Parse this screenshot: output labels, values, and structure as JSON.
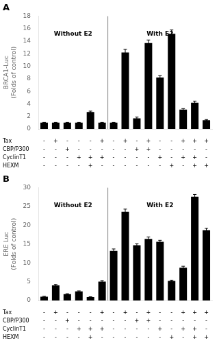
{
  "chart_data": [
    {
      "type": "bar",
      "title": "A",
      "ylabel": "BRCA1-Luc\n(Folds of control)",
      "values": [
        1.0,
        1.0,
        1.0,
        1.0,
        2.7,
        1.0,
        1.0,
        12.2,
        1.7,
        13.7,
        8.2,
        15.2,
        3.1,
        4.2,
        1.4
      ],
      "errors": [
        0.05,
        0.05,
        0.05,
        0.05,
        0.15,
        0.05,
        0.05,
        0.5,
        0.2,
        0.5,
        0.3,
        0.6,
        0.15,
        0.25,
        0.1
      ],
      "color": "#000000",
      "ylim": [
        0,
        18
      ],
      "yticks": [
        0,
        2,
        4,
        6,
        8,
        10,
        12,
        14,
        16,
        18
      ],
      "grid": false,
      "tick_labels": "y",
      "annotations": [
        "Without E2",
        "With E2"
      ],
      "divider": 6,
      "table": {
        "rows": [
          "Tax",
          "CBP/P300",
          "CyclinT1",
          "HEXM"
        ],
        "cells": [
          [
            "-",
            "+",
            "-",
            "-",
            "-",
            "+",
            "-",
            "+",
            "-",
            "+",
            "-",
            "-",
            "+",
            "+",
            "+"
          ],
          [
            "-",
            "-",
            "+",
            "-",
            "-",
            "-",
            "-",
            "-",
            "+",
            "+",
            "-",
            "-",
            "-",
            "-",
            "-"
          ],
          [
            "-",
            "-",
            "-",
            "+",
            "+",
            "+",
            "-",
            "-",
            "-",
            "-",
            "+",
            "-",
            "+",
            "+",
            "-"
          ],
          [
            "-",
            "-",
            "-",
            "-",
            "+",
            "-",
            "-",
            "-",
            "-",
            "-",
            "-",
            "+",
            "-",
            "+",
            "+"
          ]
        ]
      }
    },
    {
      "type": "bar",
      "title": "B",
      "ylabel": "ERE Luc\n(Folds of control)",
      "values": [
        1.0,
        4.0,
        1.7,
        2.4,
        0.9,
        5.0,
        13.2,
        23.6,
        14.7,
        16.4,
        15.6,
        5.2,
        8.7,
        27.6,
        18.7
      ],
      "errors": [
        0.1,
        0.25,
        0.1,
        0.15,
        0.08,
        0.3,
        0.5,
        0.7,
        0.4,
        0.5,
        0.4,
        0.2,
        0.4,
        0.6,
        0.5
      ],
      "color": "#000000",
      "ylim": [
        0,
        30
      ],
      "yticks": [
        0,
        5,
        10,
        15,
        20,
        25,
        30
      ],
      "grid": false,
      "tick_labels": "y",
      "annotations": [
        "Without E2",
        "With E2"
      ],
      "divider": 6,
      "table": {
        "rows": [
          "Tax",
          "CBP/P300",
          "CyclinT1",
          "HEXM"
        ],
        "cells": [
          [
            "-",
            "+",
            "-",
            "-",
            "-",
            "+",
            "-",
            "+",
            "-",
            "+",
            "-",
            "-",
            "+",
            "+",
            "+"
          ],
          [
            "-",
            "-",
            "+",
            "-",
            "-",
            "-",
            "-",
            "-",
            "+",
            "+",
            "-",
            "-",
            "-",
            "-",
            "-"
          ],
          [
            "-",
            "-",
            "-",
            "+",
            "+",
            "+",
            "-",
            "-",
            "-",
            "-",
            "+",
            "-",
            "+",
            "+",
            "-"
          ],
          [
            "-",
            "-",
            "-",
            "-",
            "+",
            "-",
            "-",
            "-",
            "-",
            "-",
            "-",
            "+",
            "-",
            "+",
            "+"
          ]
        ]
      }
    }
  ]
}
